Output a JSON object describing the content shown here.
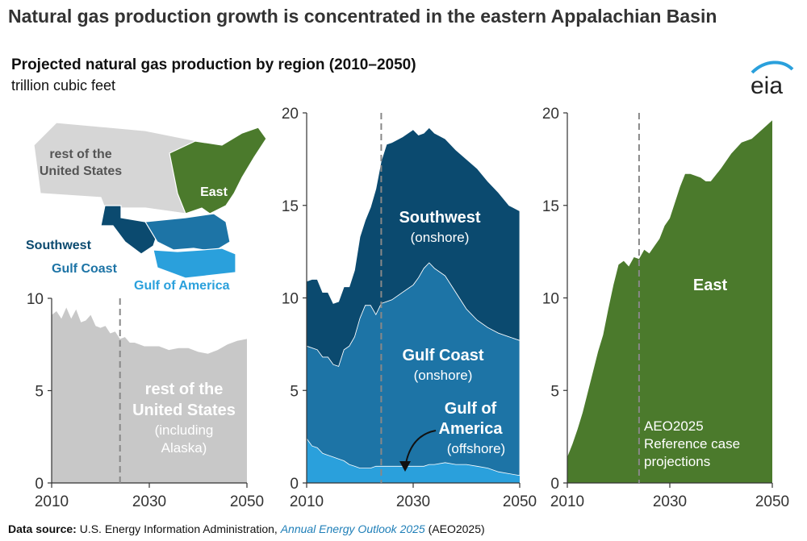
{
  "header": {
    "title": "Natural gas production growth is concentrated in the eastern Appalachian Basin",
    "subtitle": "Projected natural gas production by region (2010–2050)",
    "units": "trillion cubic feet",
    "logo_text": "eia"
  },
  "footer": {
    "label": "Data source:",
    "source": " U.S. Energy Information Administration, ",
    "publication": "Annual Energy Outlook 2025",
    "suffix": " (AEO2025)"
  },
  "map": {
    "labels": {
      "rest_line1": "rest of the",
      "rest_line2": "United States",
      "east": "East",
      "southwest": "Southwest",
      "gulf_coast": "Gulf Coast",
      "gulf_of_america": "Gulf of America"
    }
  },
  "colors": {
    "rest": "#c8c8c8",
    "southwest": "#0b4a6f",
    "gulf_coast": "#1d74a6",
    "gulf_of_america": "#2aa0dc",
    "east": "#4b7a2c",
    "projection_line": "#888888"
  },
  "chart_data": [
    {
      "type": "area",
      "name": "rest of the United States",
      "x": [
        2010,
        2011,
        2012,
        2013,
        2014,
        2015,
        2016,
        2017,
        2018,
        2019,
        2020,
        2021,
        2022,
        2023,
        2024,
        2025,
        2026,
        2027,
        2028,
        2029,
        2030,
        2032,
        2034,
        2036,
        2038,
        2040,
        2042,
        2044,
        2046,
        2048,
        2050
      ],
      "series": [
        {
          "name": "rest of the United States",
          "values": [
            9.1,
            9.3,
            8.9,
            9.5,
            8.9,
            9.4,
            8.7,
            8.8,
            9.1,
            8.5,
            8.4,
            8.5,
            8.1,
            8.2,
            7.8,
            7.9,
            7.6,
            7.6,
            7.5,
            7.4,
            7.4,
            7.4,
            7.2,
            7.3,
            7.3,
            7.1,
            7.0,
            7.2,
            7.5,
            7.7,
            7.8
          ]
        }
      ],
      "labels": {
        "line1": "rest of the",
        "line2": "United States",
        "line3": "(including",
        "line4": "Alaska)"
      },
      "ylim": [
        0,
        10
      ],
      "yticks": [
        "0",
        "5",
        "10"
      ],
      "xticks": [
        "2010",
        "2030",
        "2050"
      ],
      "projection_start": 2024
    },
    {
      "type": "area",
      "name": "Southwest, Gulf Coast, Gulf of America (stacked)",
      "x": [
        2010,
        2011,
        2012,
        2013,
        2014,
        2015,
        2016,
        2017,
        2018,
        2019,
        2020,
        2021,
        2022,
        2023,
        2024,
        2025,
        2026,
        2028,
        2030,
        2031,
        2032,
        2033,
        2034,
        2036,
        2038,
        2040,
        2042,
        2044,
        2046,
        2048,
        2050
      ],
      "series": [
        {
          "name": "Gulf of America (offshore)",
          "values": [
            2.4,
            2.0,
            1.9,
            1.6,
            1.5,
            1.4,
            1.3,
            1.2,
            1.0,
            0.9,
            0.8,
            0.8,
            0.8,
            0.9,
            0.9,
            0.9,
            0.9,
            0.9,
            0.9,
            0.9,
            0.9,
            1.0,
            1.0,
            1.1,
            1.0,
            1.0,
            0.9,
            0.8,
            0.6,
            0.5,
            0.4
          ]
        },
        {
          "name": "Gulf Coast (onshore)",
          "values": [
            5.0,
            5.3,
            5.3,
            5.2,
            5.3,
            5.0,
            5.0,
            6.0,
            6.4,
            7.0,
            8.1,
            8.8,
            8.8,
            8.2,
            8.8,
            8.9,
            9.0,
            9.4,
            9.8,
            10.2,
            10.7,
            10.9,
            10.6,
            10.1,
            9.3,
            8.4,
            7.9,
            7.6,
            7.5,
            7.4,
            7.3
          ]
        },
        {
          "name": "Southwest (onshore)",
          "values": [
            3.5,
            3.7,
            3.8,
            3.5,
            3.5,
            3.3,
            3.5,
            3.4,
            3.2,
            3.6,
            4.4,
            4.6,
            5.3,
            6.8,
            7.7,
            8.5,
            8.5,
            8.4,
            8.4,
            7.7,
            7.3,
            7.3,
            7.3,
            7.4,
            7.7,
            8.1,
            8.2,
            7.9,
            7.6,
            7.1,
            7.0
          ]
        }
      ],
      "labels": {
        "southwest": "Southwest",
        "southwest_sub": "(onshore)",
        "gulf_coast": "Gulf Coast",
        "gulf_coast_sub": "(onshore)",
        "gulf_of_america_1": "Gulf of",
        "gulf_of_america_2": "America",
        "gulf_of_america_sub": "(offshore)"
      },
      "ylim": [
        0,
        20
      ],
      "yticks": [
        "0",
        "5",
        "10",
        "15",
        "20"
      ],
      "xticks": [
        "2010",
        "2030",
        "2050"
      ],
      "projection_start": 2024
    },
    {
      "type": "area",
      "name": "East",
      "x": [
        2010,
        2011,
        2012,
        2013,
        2014,
        2015,
        2016,
        2017,
        2018,
        2019,
        2020,
        2021,
        2022,
        2023,
        2024,
        2025,
        2026,
        2027,
        2028,
        2029,
        2030,
        2032,
        2033,
        2034,
        2035,
        2036,
        2037,
        2038,
        2040,
        2042,
        2044,
        2046,
        2048,
        2050
      ],
      "series": [
        {
          "name": "East",
          "values": [
            1.4,
            2.1,
            2.9,
            3.8,
            4.9,
            6.0,
            7.1,
            8.0,
            9.4,
            10.7,
            11.8,
            12.0,
            11.7,
            12.2,
            12.1,
            12.6,
            12.4,
            12.8,
            13.2,
            13.9,
            14.3,
            16.0,
            16.7,
            16.7,
            16.6,
            16.5,
            16.3,
            16.3,
            17.0,
            17.8,
            18.4,
            18.6,
            19.1,
            19.6
          ]
        }
      ],
      "labels": {
        "region": "East",
        "note1": "AEO2025",
        "note2": "Reference case",
        "note3": "projections"
      },
      "ylim": [
        0,
        20
      ],
      "yticks": [
        "0",
        "5",
        "10",
        "15",
        "20"
      ],
      "xticks": [
        "2010",
        "2030",
        "2050"
      ],
      "projection_start": 2024
    }
  ]
}
